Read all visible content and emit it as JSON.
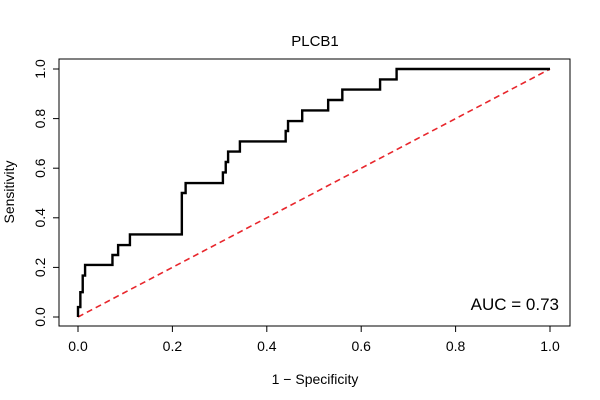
{
  "chart_data": {
    "type": "line",
    "title": "PLCB1",
    "xlabel": "1 − Specificity",
    "ylabel": "Sensitivity",
    "xlim": [
      0,
      1
    ],
    "ylim": [
      0,
      1
    ],
    "x_ticks": [
      "0.0",
      "0.2",
      "0.4",
      "0.6",
      "0.8",
      "1.0"
    ],
    "y_ticks": [
      "0.0",
      "0.2",
      "0.4",
      "0.6",
      "0.8",
      "1.0"
    ],
    "grid": false,
    "annotation": "AUC = 0.73",
    "series": [
      {
        "color": "#000000",
        "style": "solid",
        "x": [
          0.0,
          0.0,
          0.005,
          0.005,
          0.01,
          0.01,
          0.015,
          0.015,
          0.022,
          0.022,
          0.073,
          0.073,
          0.085,
          0.085,
          0.11,
          0.11,
          0.22,
          0.22,
          0.228,
          0.228,
          0.232,
          0.232,
          0.307,
          0.307,
          0.313,
          0.313,
          0.318,
          0.318,
          0.343,
          0.343,
          0.44,
          0.44,
          0.445,
          0.445,
          0.475,
          0.475,
          0.53,
          0.53,
          0.56,
          0.56,
          0.64,
          0.64,
          0.675,
          0.675,
          1.0
        ],
        "y": [
          0.0,
          0.04,
          0.04,
          0.1,
          0.1,
          0.167,
          0.167,
          0.21,
          0.21,
          0.21,
          0.21,
          0.25,
          0.25,
          0.29,
          0.29,
          0.333,
          0.333,
          0.5,
          0.5,
          0.54,
          0.54,
          0.54,
          0.54,
          0.583,
          0.583,
          0.625,
          0.625,
          0.667,
          0.667,
          0.708,
          0.708,
          0.75,
          0.75,
          0.79,
          0.79,
          0.833,
          0.833,
          0.875,
          0.875,
          0.917,
          0.917,
          0.958,
          0.958,
          1.0,
          1.0
        ]
      },
      {
        "color": "#e8262c",
        "style": "dashed",
        "x": [
          0.0,
          1.0
        ],
        "y": [
          0.0,
          1.0
        ]
      }
    ]
  }
}
